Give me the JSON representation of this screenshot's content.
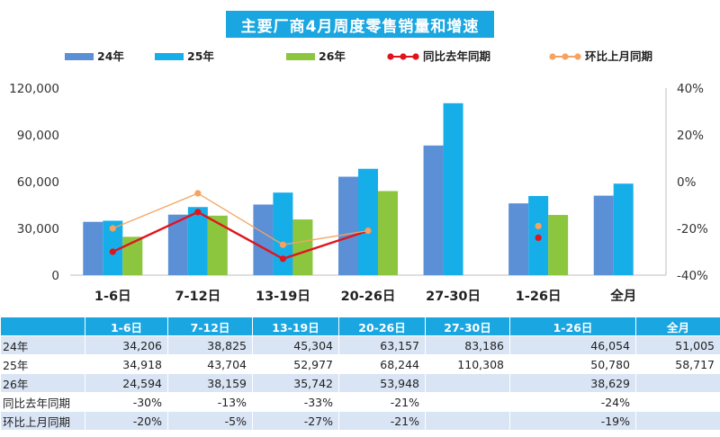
{
  "title": "主要厂商4月周度零售销量和增速",
  "chart_data": {
    "type": "bar",
    "title": "主要厂商4月周度零售销量和增速",
    "categories": [
      "1-6日",
      "7-12日",
      "13-19日",
      "20-26日",
      "27-30日",
      "1-26日",
      "全月"
    ],
    "series": [
      {
        "name": "24年",
        "kind": "bar",
        "color": "#5b8fd6",
        "values": [
          34206,
          38825,
          45304,
          63157,
          83186,
          46054,
          51005
        ]
      },
      {
        "name": "25年",
        "kind": "bar",
        "color": "#16aee8",
        "values": [
          34918,
          43704,
          52977,
          68244,
          110308,
          50780,
          58717
        ]
      },
      {
        "name": "26年",
        "kind": "bar",
        "color": "#8cc63f",
        "values": [
          24594,
          38159,
          35742,
          53948,
          null,
          38629,
          null
        ]
      },
      {
        "name": "同比去年同期",
        "kind": "line",
        "axis": "right",
        "color": "#e0141e",
        "values": [
          -30,
          -13,
          -33,
          -21,
          null,
          -24,
          null
        ]
      },
      {
        "name": "环比上月同期",
        "kind": "line",
        "axis": "right",
        "color": "#f4a460",
        "values": [
          -20,
          -5,
          -27,
          -21,
          null,
          -19,
          null
        ]
      }
    ],
    "ylim": [
      0,
      120000
    ],
    "yticks": [
      "0",
      "30,000",
      "60,000",
      "90,000",
      "120,000"
    ],
    "y2lim": [
      -40,
      40
    ],
    "y2ticks": [
      "-40%",
      "-20%",
      "0%",
      "20%",
      "40%"
    ],
    "legend_position": "top",
    "grid": false
  },
  "table": {
    "headers": [
      "1-6日",
      "7-12日",
      "13-19日",
      "20-26日",
      "27-30日",
      "1-26日",
      "全月"
    ],
    "rows": [
      {
        "label": "24年",
        "cells": [
          "34,206",
          "38,825",
          "45,304",
          "63,157",
          "83,186",
          "46,054",
          "51,005"
        ]
      },
      {
        "label": "25年",
        "cells": [
          "34,918",
          "43,704",
          "52,977",
          "68,244",
          "110,308",
          "50,780",
          "58,717"
        ]
      },
      {
        "label": "26年",
        "cells": [
          "24,594",
          "38,159",
          "35,742",
          "53,948",
          "",
          "38,629",
          ""
        ]
      },
      {
        "label": "同比去年同期",
        "cells": [
          "-30%",
          "-13%",
          "-33%",
          "-21%",
          "",
          "-24%",
          ""
        ]
      },
      {
        "label": "环比上月同期",
        "cells": [
          "-20%",
          "-5%",
          "-27%",
          "-21%",
          "",
          "-19%",
          ""
        ]
      }
    ]
  }
}
